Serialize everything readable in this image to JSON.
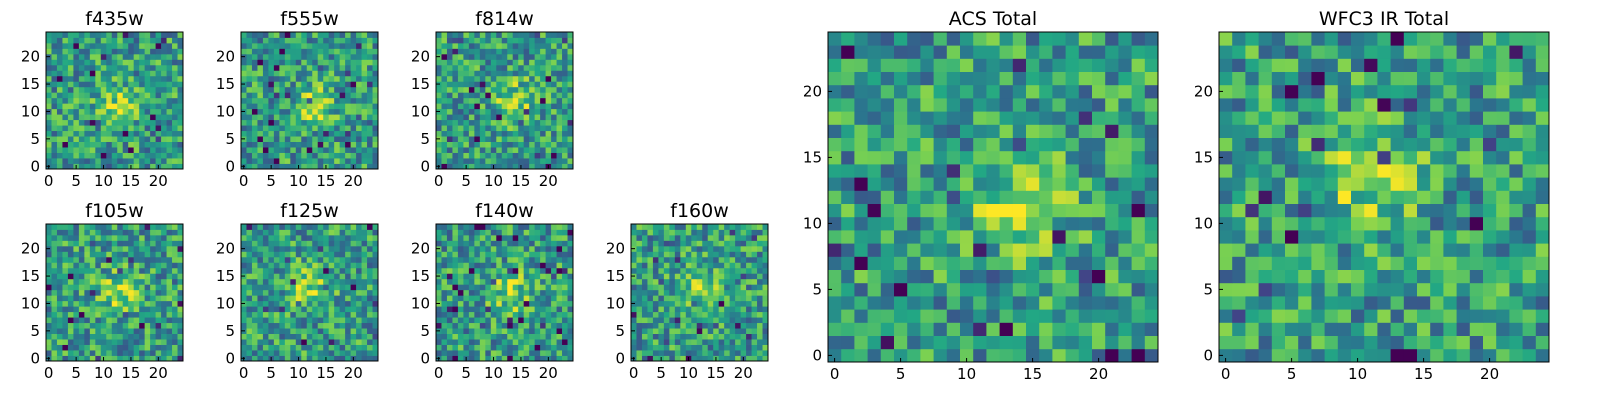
{
  "colormap": {
    "name": "viridis",
    "stops": [
      "#440154",
      "#414487",
      "#2a788e",
      "#22a884",
      "#7ad151",
      "#fde725"
    ]
  },
  "chart_data": [
    {
      "type": "heatmap",
      "title": "f435w",
      "grid": [
        25,
        25
      ],
      "xlim": [
        0,
        24
      ],
      "ylim": [
        0,
        24
      ],
      "xticks": [
        0,
        5,
        10,
        15,
        20
      ],
      "yticks": [
        0,
        5,
        10,
        15,
        20
      ],
      "hotspot": [
        13,
        11
      ],
      "seed": 11
    },
    {
      "type": "heatmap",
      "title": "f555w",
      "grid": [
        25,
        25
      ],
      "xlim": [
        0,
        24
      ],
      "ylim": [
        0,
        24
      ],
      "xticks": [
        0,
        5,
        10,
        15,
        20
      ],
      "yticks": [
        0,
        5,
        10,
        15,
        20
      ],
      "hotspot": [
        13,
        11
      ],
      "seed": 23
    },
    {
      "type": "heatmap",
      "title": "f814w",
      "grid": [
        25,
        25
      ],
      "xlim": [
        0,
        24
      ],
      "ylim": [
        0,
        24
      ],
      "xticks": [
        0,
        5,
        10,
        15,
        20
      ],
      "yticks": [
        0,
        5,
        10,
        15,
        20
      ],
      "hotspot": [
        14,
        12
      ],
      "seed": 37
    },
    {
      "type": "heatmap",
      "title": "f105w",
      "grid": [
        25,
        25
      ],
      "xlim": [
        0,
        24
      ],
      "ylim": [
        0,
        24
      ],
      "xticks": [
        0,
        5,
        10,
        15,
        20
      ],
      "yticks": [
        0,
        5,
        10,
        15,
        20
      ],
      "hotspot": [
        13,
        12
      ],
      "seed": 41
    },
    {
      "type": "heatmap",
      "title": "f125w",
      "grid": [
        25,
        25
      ],
      "xlim": [
        0,
        24
      ],
      "ylim": [
        0,
        24
      ],
      "xticks": [
        0,
        5,
        10,
        15,
        20
      ],
      "yticks": [
        0,
        5,
        10,
        15,
        20
      ],
      "hotspot": [
        12,
        13
      ],
      "seed": 53
    },
    {
      "type": "heatmap",
      "title": "f140w",
      "grid": [
        25,
        25
      ],
      "xlim": [
        0,
        24
      ],
      "ylim": [
        0,
        24
      ],
      "xticks": [
        0,
        5,
        10,
        15,
        20
      ],
      "yticks": [
        0,
        5,
        10,
        15,
        20
      ],
      "hotspot": [
        13,
        12
      ],
      "seed": 67
    },
    {
      "type": "heatmap",
      "title": "f160w",
      "grid": [
        25,
        25
      ],
      "xlim": [
        0,
        24
      ],
      "ylim": [
        0,
        24
      ],
      "xticks": [
        0,
        5,
        10,
        15,
        20
      ],
      "yticks": [
        0,
        5,
        10,
        15,
        20
      ],
      "hotspot": [
        12,
        13
      ],
      "seed": 79
    },
    {
      "type": "heatmap",
      "title": "ACS Total",
      "grid": [
        25,
        25
      ],
      "xlim": [
        0,
        24
      ],
      "ylim": [
        0,
        24
      ],
      "xticks": [
        0,
        5,
        10,
        15,
        20
      ],
      "yticks": [
        0,
        5,
        10,
        15,
        20
      ],
      "hotspot": [
        14,
        11
      ],
      "seed": 83
    },
    {
      "type": "heatmap",
      "title": "WFC3 IR Total",
      "grid": [
        25,
        25
      ],
      "xlim": [
        0,
        24
      ],
      "ylim": [
        0,
        24
      ],
      "xticks": [
        0,
        5,
        10,
        15,
        20
      ],
      "yticks": [
        0,
        5,
        10,
        15,
        20
      ],
      "hotspot": [
        11,
        13
      ],
      "seed": 97
    }
  ]
}
